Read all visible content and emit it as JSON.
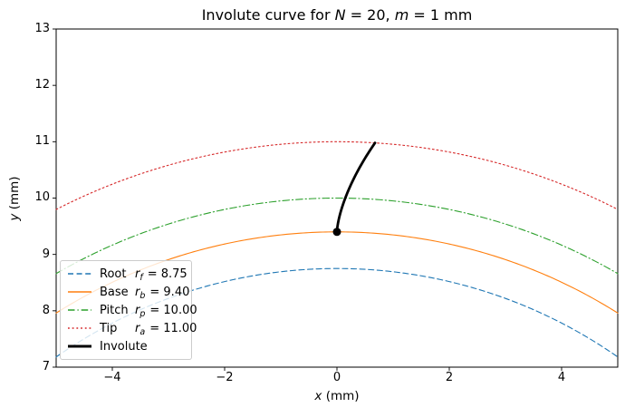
{
  "title": {
    "part1": "Involute curve for ",
    "var1": "N",
    "part2": " = 20, ",
    "var2": "m",
    "part3": " = 1 mm"
  },
  "axes": {
    "xlabel_var": "x",
    "xlabel_rest": " (mm)",
    "ylabel_var": "y",
    "ylabel_rest": " (mm)",
    "x_tick_labels": [
      "−4",
      "−2",
      "0",
      "2",
      "4"
    ],
    "y_tick_labels": [
      "7",
      "8",
      "9",
      "10",
      "11",
      "12",
      "13"
    ]
  },
  "legend": {
    "entries": [
      {
        "name": "Root",
        "symbol": "r",
        "subscript": "f",
        "value_text": "= 8.75"
      },
      {
        "name": "Base",
        "symbol": "r",
        "subscript": "b",
        "value_text": "= 9.40"
      },
      {
        "name": "Pitch",
        "symbol": "r",
        "subscript": "p",
        "value_text": "= 10.00"
      },
      {
        "name": "Tip",
        "symbol": "r",
        "subscript": "a",
        "value_text": "= 11.00"
      },
      {
        "name": "Involute",
        "symbol": "",
        "subscript": "",
        "value_text": ""
      }
    ]
  },
  "chart_data": {
    "type": "line",
    "title": "Involute curve for N = 20, m = 1 mm",
    "xlabel": "x (mm)",
    "ylabel": "y (mm)",
    "xlim": [
      -5,
      5
    ],
    "ylim": [
      7,
      13
    ],
    "x_ticks": [
      -4,
      -2,
      0,
      2,
      4
    ],
    "y_ticks": [
      7,
      8,
      9,
      10,
      11,
      12,
      13
    ],
    "grid": false,
    "legend_position": "lower left",
    "series": [
      {
        "name": "Root",
        "kind": "circle-arc",
        "radius": 8.75,
        "center": [
          0,
          0
        ],
        "color": "#1f77b4",
        "style": "dashed",
        "linewidth": 1.1
      },
      {
        "name": "Base",
        "kind": "circle-arc",
        "radius": 9.4,
        "center": [
          0,
          0
        ],
        "color": "#ff7f0e",
        "style": "solid",
        "linewidth": 1.1
      },
      {
        "name": "Pitch",
        "kind": "circle-arc",
        "radius": 10.0,
        "center": [
          0,
          0
        ],
        "color": "#2ca02c",
        "style": "dashdot",
        "linewidth": 1.1
      },
      {
        "name": "Tip",
        "kind": "circle-arc",
        "radius": 11.0,
        "center": [
          0,
          0
        ],
        "color": "#d62728",
        "style": "dotted",
        "linewidth": 1.1
      },
      {
        "name": "Involute",
        "kind": "involute",
        "base_radius": 9.4,
        "tip_radius": 11.0,
        "start_point": [
          0,
          9.4
        ],
        "end_point": [
          0.68,
          11.0
        ],
        "color": "#000000",
        "style": "solid",
        "linewidth": 2.8
      }
    ],
    "marker": {
      "x": 0,
      "y": 9.4,
      "color": "#000000",
      "shape": "circle",
      "radius_px": 4.5
    }
  }
}
